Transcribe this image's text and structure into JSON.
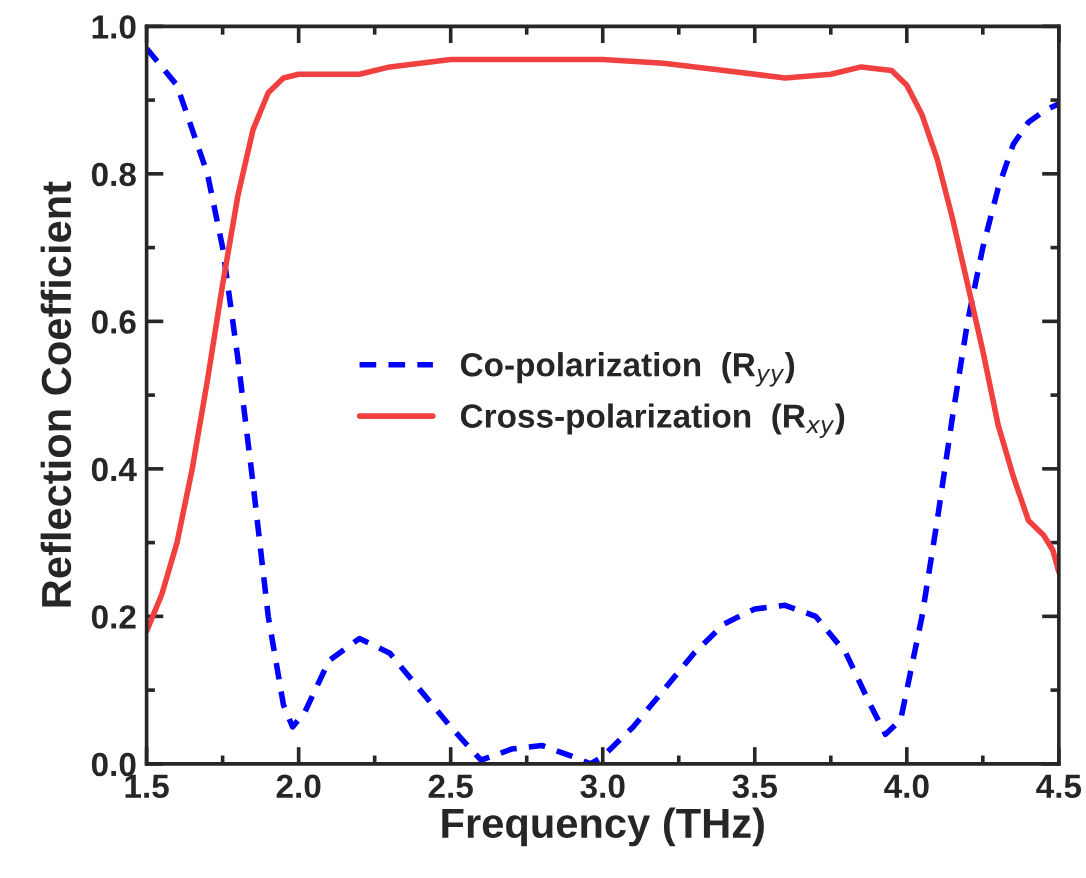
{
  "chart_data": {
    "type": "line",
    "xlabel": "Frequency (THz)",
    "ylabel": "Reflection Coefficient",
    "xlim": [
      1.5,
      4.5
    ],
    "ylim": [
      0,
      1.0
    ],
    "xticks": [
      {
        "value": 1.5,
        "label": "1.5"
      },
      {
        "value": 2.0,
        "label": "2.0"
      },
      {
        "value": 2.5,
        "label": "2.5"
      },
      {
        "value": 3.0,
        "label": "3.0"
      },
      {
        "value": 3.5,
        "label": "3.5"
      },
      {
        "value": 4.0,
        "label": "4.0"
      },
      {
        "value": 4.5,
        "label": "4.5"
      }
    ],
    "yticks": [
      {
        "value": 0,
        "label": "0.0"
      },
      {
        "value": 0.2,
        "label": "0.2"
      },
      {
        "value": 0.4,
        "label": "0.4"
      },
      {
        "value": 0.6,
        "label": "0.6"
      },
      {
        "value": 0.8,
        "label": "0.8"
      },
      {
        "value": 1.0,
        "label": "1.0"
      }
    ],
    "grid": false,
    "legend": "center",
    "marker": "none",
    "series": [
      {
        "name": "Co-polarization  (R$_{yy}$)",
        "color": "#0000ff",
        "line_style": "dashed",
        "x": [
          1.5,
          1.6,
          1.7,
          1.75,
          1.8,
          1.85,
          1.9,
          1.95,
          1.98,
          2.02,
          2.1,
          2.2,
          2.3,
          2.4,
          2.5,
          2.6,
          2.7,
          2.8,
          2.9,
          2.96,
          3.0,
          3.1,
          3.2,
          3.3,
          3.4,
          3.5,
          3.6,
          3.7,
          3.8,
          3.88,
          3.93,
          3.98,
          4.05,
          4.1,
          4.15,
          4.2,
          4.25,
          4.3,
          4.35,
          4.4,
          4.45,
          4.5
        ],
        "values": [
          0.97,
          0.92,
          0.8,
          0.7,
          0.55,
          0.38,
          0.2,
          0.08,
          0.05,
          0.07,
          0.14,
          0.17,
          0.15,
          0.1,
          0.05,
          0.005,
          0.02,
          0.025,
          0.01,
          0.0,
          0.01,
          0.05,
          0.1,
          0.15,
          0.19,
          0.21,
          0.215,
          0.2,
          0.15,
          0.08,
          0.04,
          0.06,
          0.2,
          0.33,
          0.47,
          0.6,
          0.7,
          0.78,
          0.84,
          0.87,
          0.885,
          0.895
        ]
      },
      {
        "name": "Cross-polarization  (R$_{xy}$)",
        "color": "#f04040",
        "line_style": "solid",
        "x": [
          1.5,
          1.55,
          1.6,
          1.65,
          1.7,
          1.75,
          1.8,
          1.85,
          1.9,
          1.95,
          2.0,
          2.1,
          2.2,
          2.3,
          2.5,
          3.0,
          3.2,
          3.4,
          3.6,
          3.75,
          3.85,
          3.95,
          4.0,
          4.05,
          4.1,
          4.15,
          4.2,
          4.25,
          4.3,
          4.35,
          4.4,
          4.45,
          4.48,
          4.5
        ],
        "values": [
          0.18,
          0.23,
          0.3,
          0.4,
          0.52,
          0.65,
          0.77,
          0.86,
          0.91,
          0.93,
          0.935,
          0.935,
          0.935,
          0.945,
          0.955,
          0.955,
          0.95,
          0.94,
          0.93,
          0.935,
          0.945,
          0.94,
          0.92,
          0.88,
          0.82,
          0.74,
          0.65,
          0.56,
          0.46,
          0.39,
          0.33,
          0.31,
          0.29,
          0.26
        ]
      }
    ]
  }
}
